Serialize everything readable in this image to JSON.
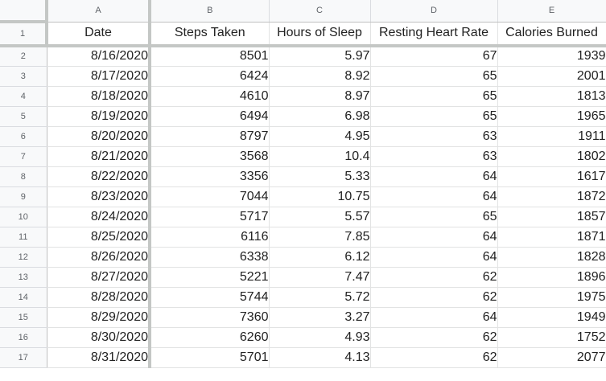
{
  "columns": [
    "A",
    "B",
    "C",
    "D",
    "E"
  ],
  "headers": {
    "row_number": "1",
    "date": "Date",
    "steps": "Steps Taken",
    "sleep": "Hours of Sleep",
    "heart_rate": "Resting Heart Rate",
    "calories": "Calories Burned"
  },
  "rows": [
    {
      "num": "2",
      "date": "8/16/2020",
      "steps": "8501",
      "sleep": "5.97",
      "heart_rate": "67",
      "calories": "1939"
    },
    {
      "num": "3",
      "date": "8/17/2020",
      "steps": "6424",
      "sleep": "8.92",
      "heart_rate": "65",
      "calories": "2001"
    },
    {
      "num": "4",
      "date": "8/18/2020",
      "steps": "4610",
      "sleep": "8.97",
      "heart_rate": "65",
      "calories": "1813"
    },
    {
      "num": "5",
      "date": "8/19/2020",
      "steps": "6494",
      "sleep": "6.98",
      "heart_rate": "65",
      "calories": "1965"
    },
    {
      "num": "6",
      "date": "8/20/2020",
      "steps": "8797",
      "sleep": "4.95",
      "heart_rate": "63",
      "calories": "1911"
    },
    {
      "num": "7",
      "date": "8/21/2020",
      "steps": "3568",
      "sleep": "10.4",
      "heart_rate": "63",
      "calories": "1802"
    },
    {
      "num": "8",
      "date": "8/22/2020",
      "steps": "3356",
      "sleep": "5.33",
      "heart_rate": "64",
      "calories": "1617"
    },
    {
      "num": "9",
      "date": "8/23/2020",
      "steps": "7044",
      "sleep": "10.75",
      "heart_rate": "64",
      "calories": "1872"
    },
    {
      "num": "10",
      "date": "8/24/2020",
      "steps": "5717",
      "sleep": "5.57",
      "heart_rate": "65",
      "calories": "1857"
    },
    {
      "num": "11",
      "date": "8/25/2020",
      "steps": "6116",
      "sleep": "7.85",
      "heart_rate": "64",
      "calories": "1871"
    },
    {
      "num": "12",
      "date": "8/26/2020",
      "steps": "6338",
      "sleep": "6.12",
      "heart_rate": "64",
      "calories": "1828"
    },
    {
      "num": "13",
      "date": "8/27/2020",
      "steps": "5221",
      "sleep": "7.47",
      "heart_rate": "62",
      "calories": "1896"
    },
    {
      "num": "14",
      "date": "8/28/2020",
      "steps": "5744",
      "sleep": "5.72",
      "heart_rate": "62",
      "calories": "1975"
    },
    {
      "num": "15",
      "date": "8/29/2020",
      "steps": "7360",
      "sleep": "3.27",
      "heart_rate": "64",
      "calories": "1949"
    },
    {
      "num": "16",
      "date": "8/30/2020",
      "steps": "6260",
      "sleep": "4.93",
      "heart_rate": "62",
      "calories": "1752"
    },
    {
      "num": "17",
      "date": "8/31/2020",
      "steps": "5701",
      "sleep": "4.13",
      "heart_rate": "62",
      "calories": "2077"
    }
  ],
  "colors": {
    "header_bg": "#f8f9fa",
    "grid_line": "#e2e3e3",
    "freeze_bar": "#c4c7c5",
    "header_text": "#5f6368",
    "cell_text": "#222222"
  }
}
